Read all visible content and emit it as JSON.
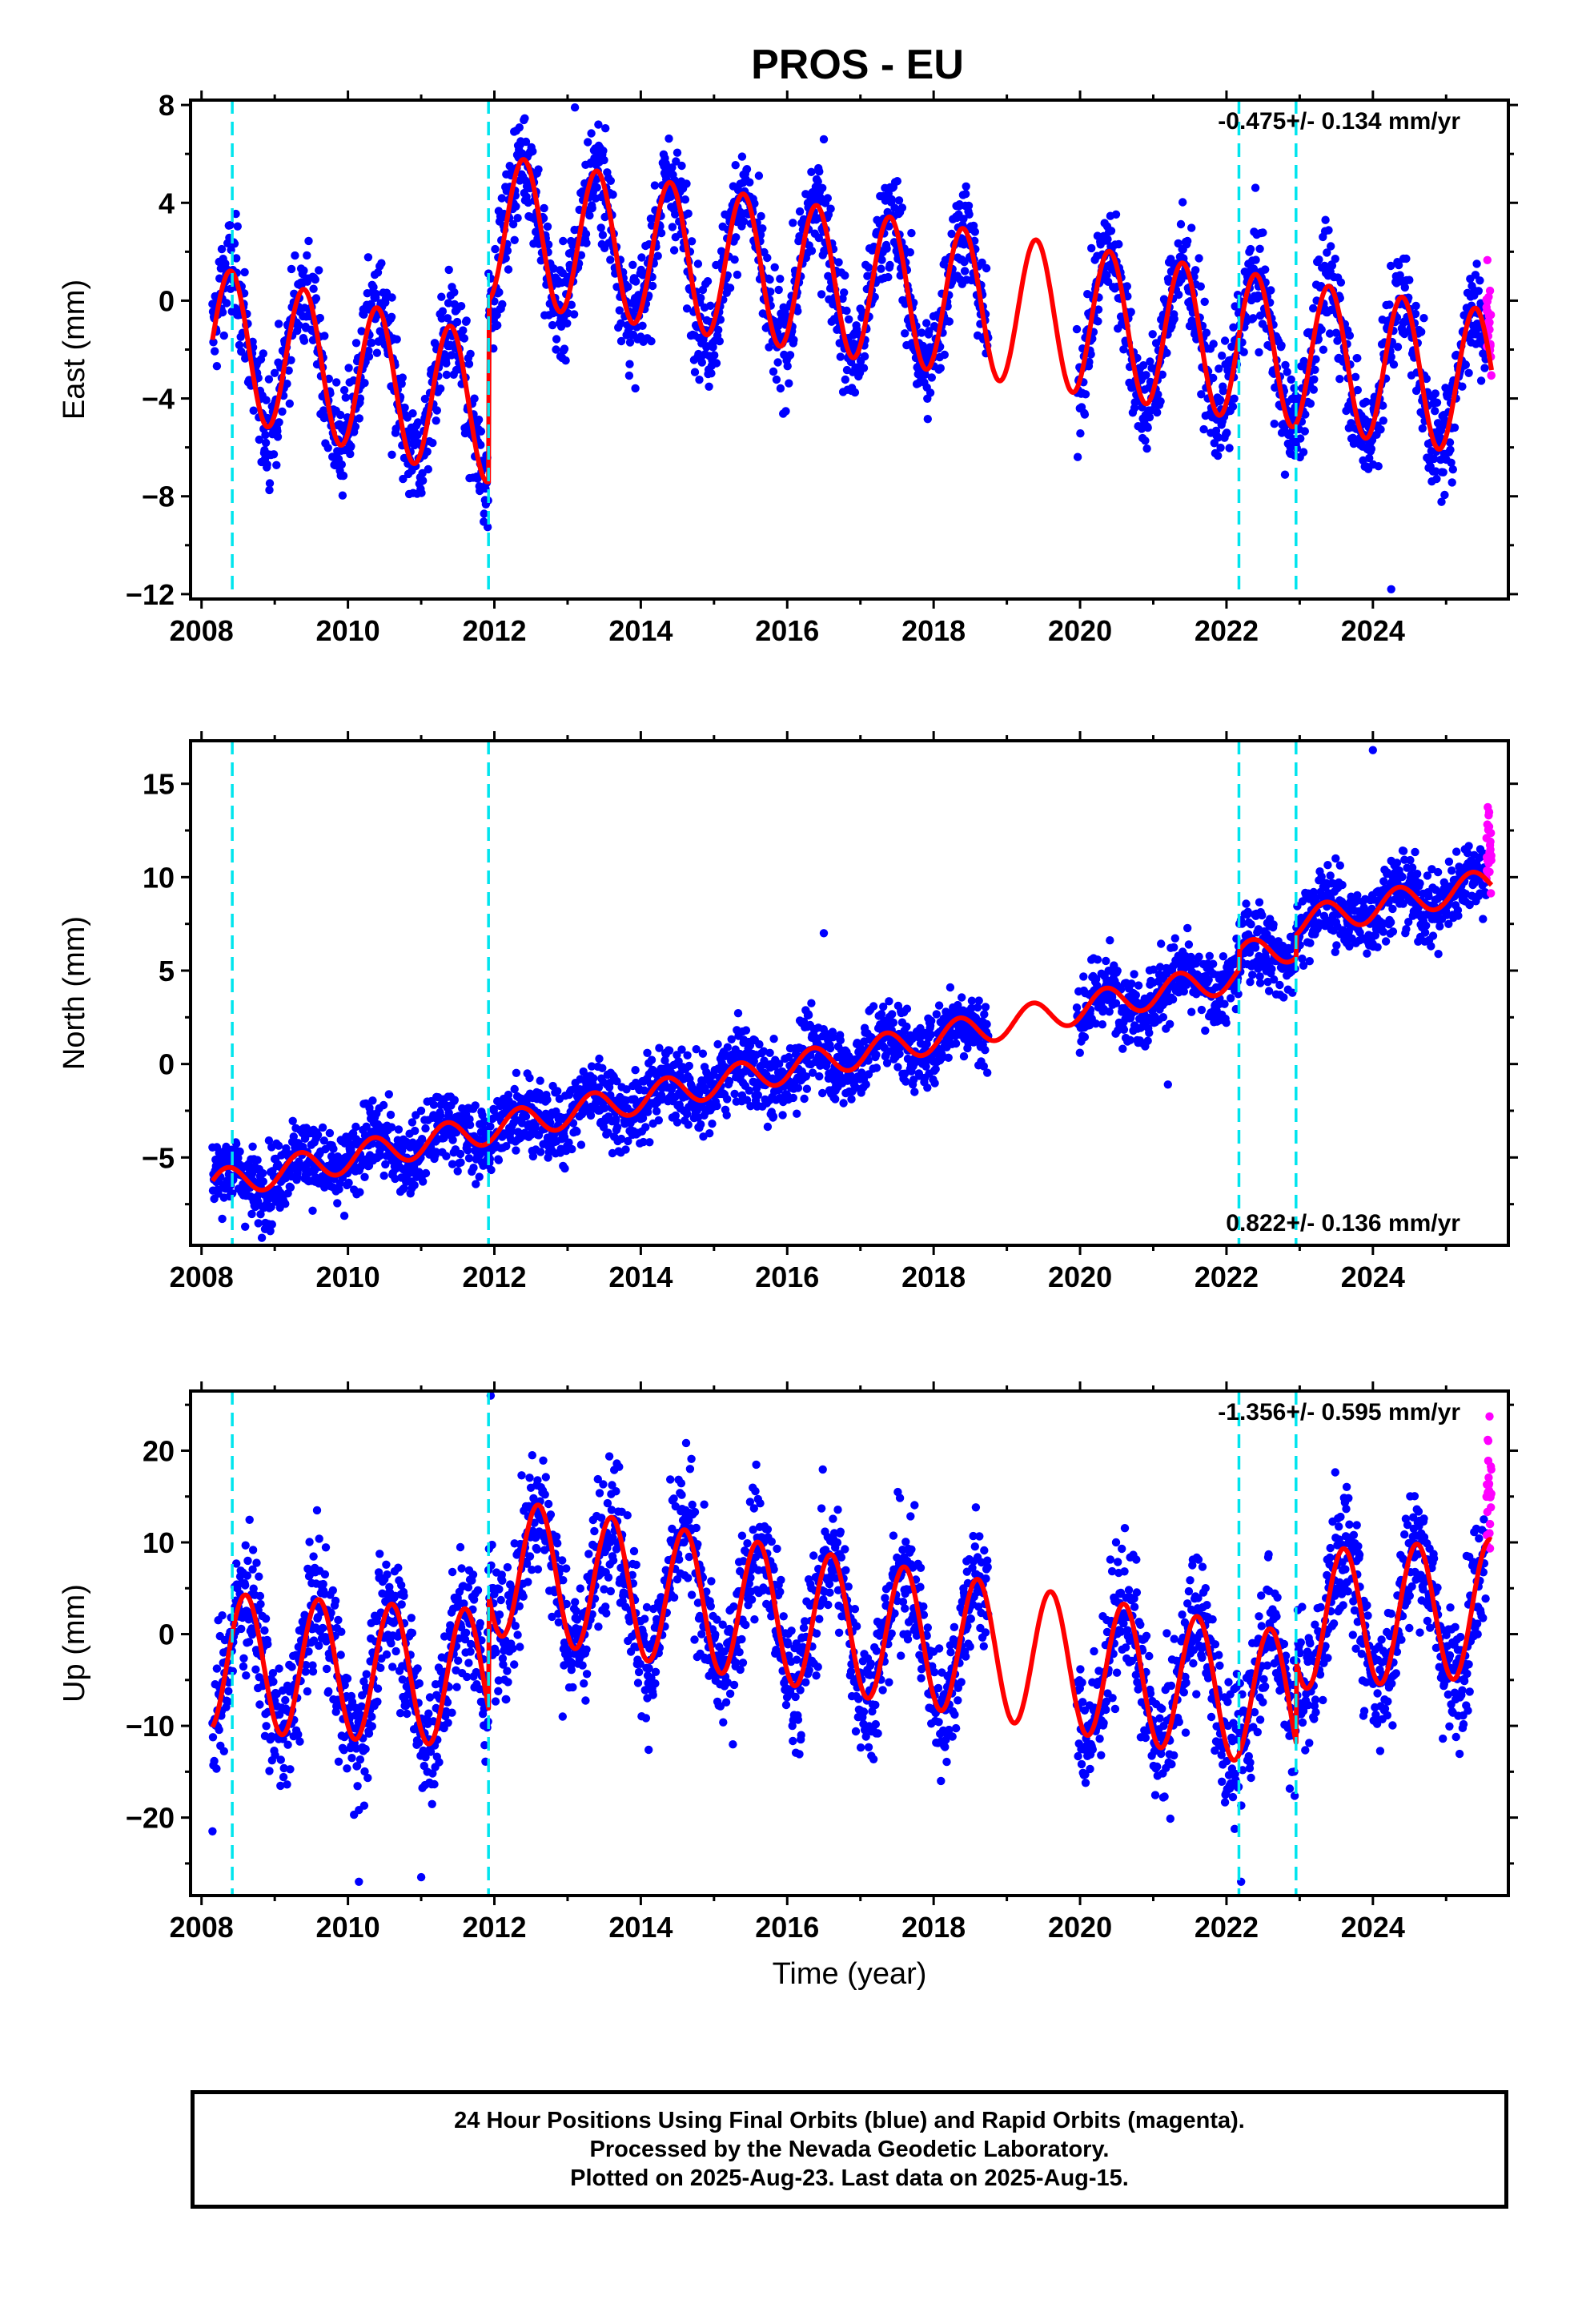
{
  "title": "PROS - EU",
  "colors": {
    "final_orbits": "#0000ff",
    "rapid_orbits": "#ff00ff",
    "model_fit": "#ff0000",
    "offsets": "#00e5ee",
    "frame": "#000000"
  },
  "chart_data": [
    {
      "type": "scatter",
      "name": "east",
      "ylabel": "East (mm)",
      "xlabel": "",
      "xlim": [
        2007.85,
        2025.85
      ],
      "ylim": [
        -12.2,
        8.2
      ],
      "xticks": [
        2008,
        2010,
        2012,
        2014,
        2016,
        2018,
        2020,
        2022,
        2024
      ],
      "xtick_labels": [
        "2008",
        "2010",
        "2012",
        "2014",
        "2016",
        "2018",
        "2020",
        "2022",
        "2024"
      ],
      "yticks": [
        8,
        4,
        0,
        -4,
        -8,
        -12
      ],
      "ytick_labels": [
        "8",
        "4",
        "0",
        "−4",
        "−8",
        "−12"
      ],
      "rate_label": "-0.475+/- 0.134 mm/yr",
      "rate_position": "top-right",
      "offsets": [
        2008.42,
        2011.92,
        2022.17,
        2022.95
      ],
      "model": {
        "segments": [
          {
            "from": 2008.15,
            "to": 2011.92,
            "base": -1.6,
            "trend": -0.75
          },
          {
            "from": 2011.92,
            "to": 2022.95,
            "base": 3.0,
            "trend": -0.47
          },
          {
            "from": 2022.95,
            "to": 2025.62,
            "base": -2.2,
            "trend": -0.45
          }
        ],
        "annual_amplitude": 3.0,
        "peak_phase": 0.4
      },
      "scatter": {
        "noise": 1.1,
        "gap": [
          2018.75,
          2019.95
        ],
        "rapid_from": 2025.55,
        "rapid_offset": 1.5,
        "outliers": [
          [
            2013.1,
            7.9
          ],
          [
            2024.25,
            -11.8
          ],
          [
            2010.6,
            -6.3
          ],
          [
            2016.5,
            6.6
          ]
        ]
      }
    },
    {
      "type": "scatter",
      "name": "north",
      "ylabel": "North (mm)",
      "xlabel": "",
      "xlim": [
        2007.85,
        2025.85
      ],
      "ylim": [
        -9.7,
        17.3
      ],
      "xticks": [
        2008,
        2010,
        2012,
        2014,
        2016,
        2018,
        2020,
        2022,
        2024
      ],
      "xtick_labels": [
        "2008",
        "2010",
        "2012",
        "2014",
        "2016",
        "2018",
        "2020",
        "2022",
        "2024"
      ],
      "yticks": [
        15,
        10,
        5,
        0,
        -5
      ],
      "ytick_labels": [
        "15",
        "10",
        "5",
        "0",
        "−5"
      ],
      "rate_label": "0.822+/- 0.136 mm/yr",
      "rate_position": "bottom-right",
      "offsets": [
        2008.42,
        2011.92,
        2022.17,
        2022.95
      ],
      "model": {
        "segments": [
          {
            "from": 2008.15,
            "to": 2025.62,
            "base": -6.5,
            "trend": 0.8
          }
        ],
        "annual_amplitude": 0.8,
        "peak_phase": 0.35,
        "steps": [
          [
            2022.17,
            1.0
          ],
          [
            2022.95,
            1.2
          ]
        ]
      },
      "scatter": {
        "noise": 1.0,
        "gap": [
          2018.75,
          2019.95
        ],
        "rapid_from": 2025.55,
        "rapid_offset": 2.0,
        "outliers": [
          [
            2016.5,
            7.0
          ],
          [
            2024.0,
            16.8
          ],
          [
            2021.2,
            -1.1
          ]
        ]
      }
    },
    {
      "type": "scatter",
      "name": "up",
      "ylabel": "Up (mm)",
      "xlabel": "Time (year)",
      "xlim": [
        2007.85,
        2025.85
      ],
      "ylim": [
        -28.5,
        26.5
      ],
      "xticks": [
        2008,
        2010,
        2012,
        2014,
        2016,
        2018,
        2020,
        2022,
        2024
      ],
      "xtick_labels": [
        "2008",
        "2010",
        "2012",
        "2014",
        "2016",
        "2018",
        "2020",
        "2022",
        "2024"
      ],
      "yticks": [
        20,
        10,
        0,
        -10,
        -20
      ],
      "ytick_labels": [
        "20",
        "10",
        "0",
        "−10",
        "−20"
      ],
      "rate_label": "-1.356+/- 0.595 mm/yr",
      "rate_position": "top-right",
      "offsets": [
        2008.42,
        2011.92,
        2022.17,
        2022.95
      ],
      "model": {
        "segments": [
          {
            "from": 2008.15,
            "to": 2011.92,
            "base": -3.0,
            "trend": -0.5
          },
          {
            "from": 2011.92,
            "to": 2022.95,
            "base": 7.5,
            "trend": -1.35
          },
          {
            "from": 2022.95,
            "to": 2025.62,
            "base": 1.5,
            "trend": 0.5
          }
        ],
        "annual_amplitude": 7.5,
        "peak_phase": 0.6
      },
      "scatter": {
        "noise": 3.6,
        "gap": [
          2018.75,
          2019.95
        ],
        "rapid_from": 2025.55,
        "rapid_offset": 6.0,
        "outliers": [
          [
            2011.95,
            26.0
          ],
          [
            2010.15,
            -27.0
          ],
          [
            2022.2,
            -27.0
          ],
          [
            2011.0,
            -26.5
          ],
          [
            2008.15,
            -21.5
          ]
        ]
      }
    }
  ],
  "footer": {
    "line1": "24 Hour Positions Using Final Orbits (blue) and Rapid Orbits (magenta).",
    "line2": "Processed by the Nevada Geodetic Laboratory.",
    "line3": "Plotted on 2025-Aug-23. Last data on 2025-Aug-15."
  }
}
